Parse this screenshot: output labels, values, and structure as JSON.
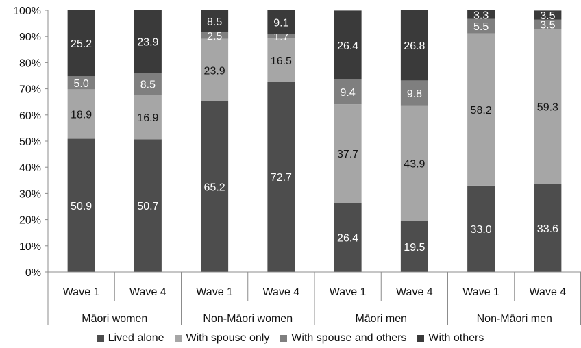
{
  "chart_data": {
    "type": "bar",
    "stacked": true,
    "ylim": [
      0,
      100
    ],
    "yticks": [
      "0%",
      "10%",
      "20%",
      "30%",
      "40%",
      "50%",
      "60%",
      "70%",
      "80%",
      "90%",
      "100%"
    ],
    "groups": [
      "Māori women",
      "Non-Māori women",
      "Māori men",
      "Non-Māori men"
    ],
    "categories": [
      "Wave 1",
      "Wave 4",
      "Wave 1",
      "Wave 4",
      "Wave 1",
      "Wave 4",
      "Wave 1",
      "Wave 4"
    ],
    "series": [
      {
        "name": "Lived alone",
        "color": "#4d4d4d",
        "values": [
          50.9,
          50.7,
          65.2,
          72.7,
          26.4,
          19.5,
          33.0,
          33.6
        ],
        "labels": [
          "50.9",
          "50.7",
          "65.2",
          "72.7",
          "26.4",
          "19.5",
          "33.0",
          "33.6"
        ]
      },
      {
        "name": "With spouse only",
        "color": "#a6a6a6",
        "values": [
          18.9,
          16.9,
          23.9,
          16.5,
          37.7,
          43.9,
          58.2,
          59.3
        ],
        "labels": [
          "18.9",
          "16.9",
          "23.9",
          "16.5",
          "37.7",
          "43.9",
          "58.2",
          "59.3"
        ]
      },
      {
        "name": "With spouse and others",
        "color": "#7f7f7f",
        "values": [
          5.0,
          8.5,
          2.5,
          1.7,
          9.4,
          9.8,
          5.5,
          3.5
        ],
        "labels": [
          "5.0",
          "8.5",
          "2.5",
          "1.7",
          "9.4",
          "9.8",
          "5.5",
          "3.5"
        ]
      },
      {
        "name": "With others",
        "color": "#3a3a3a",
        "values": [
          25.2,
          23.9,
          8.5,
          9.1,
          26.4,
          26.8,
          3.3,
          3.5
        ],
        "labels": [
          "25.2",
          "23.9",
          "8.5",
          "9.1",
          "26.4",
          "26.8",
          "3.3",
          "3.5"
        ]
      }
    ],
    "grid": false,
    "legend_position": "bottom"
  }
}
